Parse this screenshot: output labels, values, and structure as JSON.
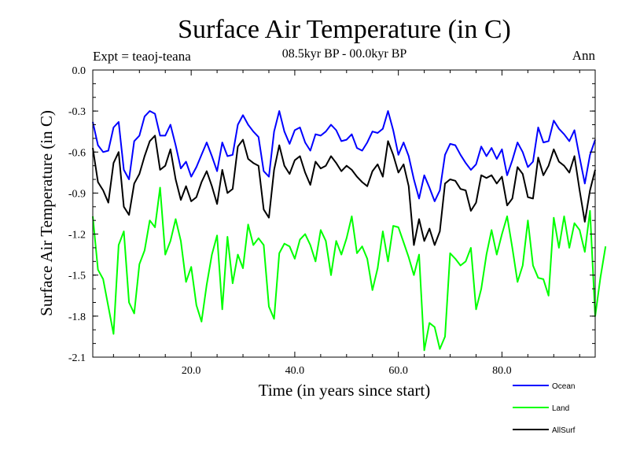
{
  "chart_data": {
    "type": "line",
    "title": "Surface Air Temperature (in C)",
    "subtitle": "08.5kyr BP - 00.0kyr BP",
    "left_label": "Expt = teaoj-teana",
    "right_label": "Ann",
    "xlabel": "Time (in years since start)",
    "ylabel": "Surface Air Temperature (in C)",
    "xlim": [
      1,
      98
    ],
    "ylim": [
      -2.1,
      0.0
    ],
    "xticks": [
      20,
      40,
      60,
      80
    ],
    "xtick_labels": [
      "20.0",
      "40.0",
      "60.0",
      "80.0"
    ],
    "yticks": [
      0.0,
      -0.3,
      -0.6,
      -0.9,
      -1.2,
      -1.5,
      -1.8,
      -2.1
    ],
    "ytick_labels": [
      "0.0",
      "-0.3",
      "-0.6",
      "-0.9",
      "-1.2",
      "-1.5",
      "-1.8",
      "-2.1"
    ],
    "x_start": 1,
    "series": [
      {
        "name": "Ocean",
        "color": "#0000ff",
        "values": [
          -0.38,
          -0.55,
          -0.6,
          -0.59,
          -0.42,
          -0.38,
          -0.73,
          -0.8,
          -0.52,
          -0.48,
          -0.34,
          -0.3,
          -0.32,
          -0.48,
          -0.48,
          -0.4,
          -0.55,
          -0.72,
          -0.67,
          -0.78,
          -0.71,
          -0.62,
          -0.53,
          -0.63,
          -0.74,
          -0.53,
          -0.63,
          -0.62,
          -0.4,
          -0.33,
          -0.4,
          -0.45,
          -0.49,
          -0.74,
          -0.78,
          -0.45,
          -0.3,
          -0.45,
          -0.54,
          -0.44,
          -0.42,
          -0.53,
          -0.59,
          -0.47,
          -0.48,
          -0.45,
          -0.4,
          -0.44,
          -0.52,
          -0.51,
          -0.47,
          -0.57,
          -0.59,
          -0.53,
          -0.45,
          -0.46,
          -0.43,
          -0.3,
          -0.44,
          -0.62,
          -0.53,
          -0.63,
          -0.8,
          -0.94,
          -0.77,
          -0.86,
          -0.96,
          -0.88,
          -0.62,
          -0.54,
          -0.55,
          -0.62,
          -0.68,
          -0.73,
          -0.69,
          -0.56,
          -0.63,
          -0.57,
          -0.65,
          -0.58,
          -0.77,
          -0.66,
          -0.53,
          -0.6,
          -0.71,
          -0.67,
          -0.42,
          -0.53,
          -0.52,
          -0.37,
          -0.43,
          -0.47,
          -0.52,
          -0.44,
          -0.64,
          -0.83,
          -0.62,
          -0.51
        ]
      },
      {
        "name": "Land",
        "color": "#00ff00",
        "values": [
          -1.07,
          -1.46,
          -1.53,
          -1.73,
          -1.93,
          -1.28,
          -1.18,
          -1.7,
          -1.78,
          -1.42,
          -1.32,
          -1.1,
          -1.15,
          -0.86,
          -1.35,
          -1.25,
          -1.09,
          -1.25,
          -1.55,
          -1.44,
          -1.72,
          -1.84,
          -1.57,
          -1.35,
          -1.21,
          -1.75,
          -1.22,
          -1.56,
          -1.35,
          -1.45,
          -1.13,
          -1.28,
          -1.23,
          -1.28,
          -1.73,
          -1.82,
          -1.34,
          -1.27,
          -1.29,
          -1.38,
          -1.24,
          -1.2,
          -1.28,
          -1.4,
          -1.17,
          -1.25,
          -1.5,
          -1.25,
          -1.35,
          -1.23,
          -1.07,
          -1.34,
          -1.29,
          -1.38,
          -1.61,
          -1.45,
          -1.18,
          -1.4,
          -1.14,
          -1.15,
          -1.26,
          -1.37,
          -1.5,
          -1.35,
          -2.05,
          -1.85,
          -1.88,
          -2.04,
          -1.95,
          -1.34,
          -1.38,
          -1.43,
          -1.4,
          -1.3,
          -1.75,
          -1.6,
          -1.35,
          -1.17,
          -1.35,
          -1.2,
          -1.07,
          -1.3,
          -1.55,
          -1.43,
          -1.1,
          -1.43,
          -1.52,
          -1.53,
          -1.65,
          -1.08,
          -1.3,
          -1.07,
          -1.3,
          -1.12,
          -1.17,
          -1.33,
          -1.03,
          -1.8,
          -1.52,
          -1.29
        ]
      },
      {
        "name": "AllSurf",
        "color": "#000000",
        "values": [
          -0.57,
          -0.82,
          -0.88,
          -0.97,
          -0.68,
          -0.6,
          -1.0,
          -1.06,
          -0.83,
          -0.76,
          -0.63,
          -0.52,
          -0.48,
          -0.73,
          -0.7,
          -0.58,
          -0.8,
          -0.95,
          -0.85,
          -0.96,
          -0.93,
          -0.82,
          -0.74,
          -0.85,
          -0.98,
          -0.73,
          -0.9,
          -0.87,
          -0.56,
          -0.51,
          -0.65,
          -0.68,
          -0.7,
          -1.02,
          -1.08,
          -0.73,
          -0.55,
          -0.7,
          -0.76,
          -0.66,
          -0.63,
          -0.75,
          -0.84,
          -0.67,
          -0.72,
          -0.7,
          -0.63,
          -0.68,
          -0.74,
          -0.7,
          -0.73,
          -0.78,
          -0.82,
          -0.85,
          -0.74,
          -0.69,
          -0.78,
          -0.52,
          -0.62,
          -0.75,
          -0.69,
          -0.85,
          -1.28,
          -1.09,
          -1.25,
          -1.16,
          -1.28,
          -1.18,
          -0.83,
          -0.8,
          -0.81,
          -0.87,
          -0.88,
          -1.03,
          -0.97,
          -0.77,
          -0.79,
          -0.77,
          -0.83,
          -0.78,
          -0.99,
          -0.94,
          -0.71,
          -0.76,
          -0.93,
          -0.94,
          -0.64,
          -0.77,
          -0.7,
          -0.58,
          -0.67,
          -0.7,
          -0.75,
          -0.63,
          -0.88,
          -1.11,
          -0.88,
          -0.73
        ]
      }
    ]
  }
}
